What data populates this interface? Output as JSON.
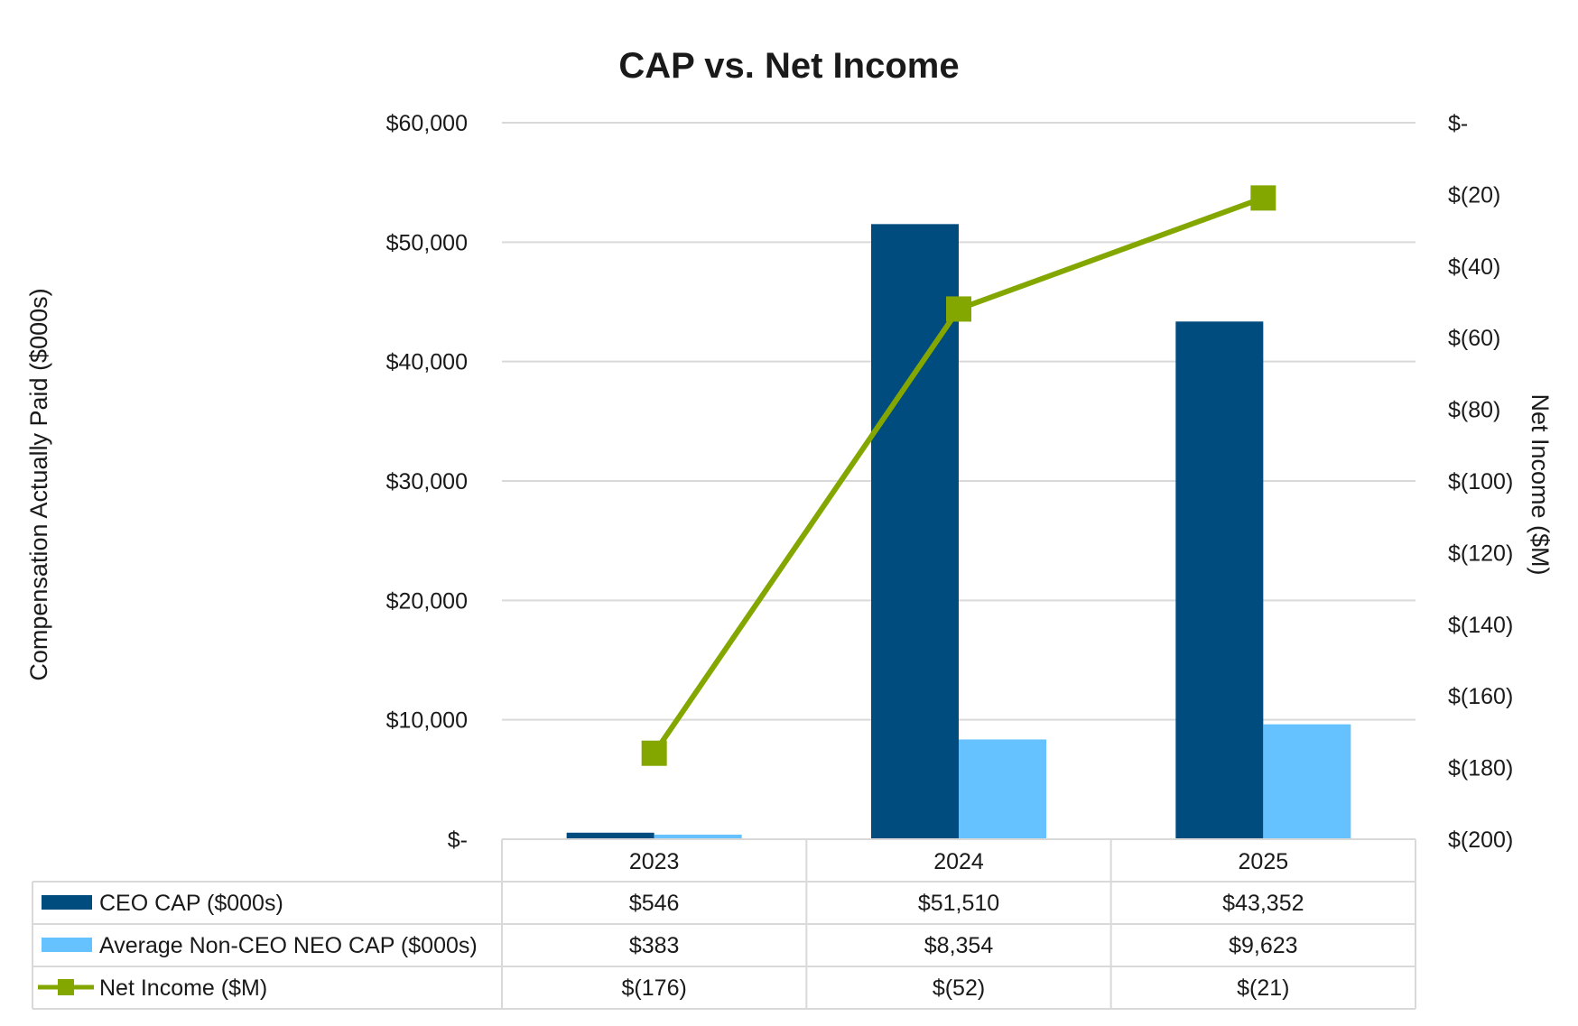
{
  "chart_data": {
    "type": "bar",
    "title": "CAP vs. Net Income",
    "categories": [
      "2023",
      "2024",
      "2025"
    ],
    "ylabel": "Compensation Actually Paid ($000s)",
    "y2label": "Net Income ($M)",
    "ylim": [
      0,
      60000
    ],
    "y2lim": [
      -200,
      0
    ],
    "yticks": [
      {
        "value": 0,
        "label": "$-"
      },
      {
        "value": 10000,
        "label": "$10,000"
      },
      {
        "value": 20000,
        "label": "$20,000"
      },
      {
        "value": 30000,
        "label": "$30,000"
      },
      {
        "value": 40000,
        "label": "$40,000"
      },
      {
        "value": 50000,
        "label": "$50,000"
      },
      {
        "value": 60000,
        "label": "$60,000"
      }
    ],
    "y2ticks": [
      {
        "value": 0,
        "label": "$-"
      },
      {
        "value": -20,
        "label": "$(20)"
      },
      {
        "value": -40,
        "label": "$(40)"
      },
      {
        "value": -60,
        "label": "$(60)"
      },
      {
        "value": -80,
        "label": "$(80)"
      },
      {
        "value": -100,
        "label": "$(100)"
      },
      {
        "value": -120,
        "label": "$(120)"
      },
      {
        "value": -140,
        "label": "$(140)"
      },
      {
        "value": -160,
        "label": "$(160)"
      },
      {
        "value": -180,
        "label": "$(180)"
      },
      {
        "value": -200,
        "label": "$(200)"
      }
    ],
    "grid": true,
    "legend_placement": "data-table-below",
    "series": [
      {
        "name": "CEO CAP ($000s)",
        "kind": "bar",
        "axis": "left",
        "color": "#004c7f",
        "values": [
          546,
          51510,
          43352
        ],
        "labels": [
          "$546",
          "$51,510",
          "$43,352"
        ]
      },
      {
        "name": "Average Non-CEO NEO CAP ($000s)",
        "kind": "bar",
        "axis": "left",
        "color": "#66c2ff",
        "values": [
          383,
          8354,
          9623
        ],
        "labels": [
          "$383",
          "$8,354",
          "$9,623"
        ]
      },
      {
        "name": "Net Income ($M)",
        "kind": "line",
        "axis": "right",
        "color": "#84a700",
        "marker": "square",
        "values": [
          -176,
          -52,
          -21
        ],
        "labels": [
          "$(176)",
          "$(52)",
          "$(21)"
        ]
      }
    ]
  }
}
